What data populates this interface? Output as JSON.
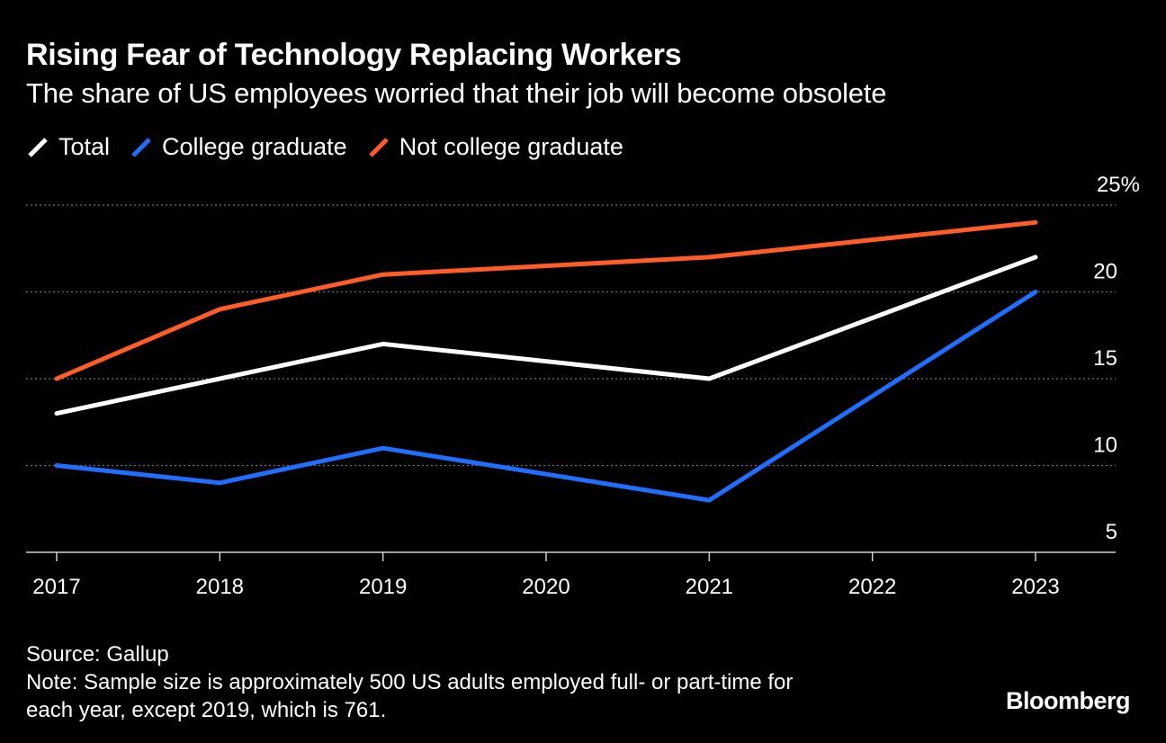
{
  "header": {
    "title": "Rising Fear of Technology Replacing Workers",
    "subtitle": "The share of US employees worried that their job will become obsolete"
  },
  "legend": [
    {
      "label": "Total",
      "color": "#ffffff"
    },
    {
      "label": "College graduate",
      "color": "#1f6fff"
    },
    {
      "label": "Not college graduate",
      "color": "#ff5c26"
    }
  ],
  "footer": {
    "source": "Source: Gallup",
    "note_line1": "Note: Sample size is approximately 500 US adults employed full- or part-time for",
    "note_line2": "each year, except 2019, which is 761."
  },
  "brand": "Bloomberg",
  "chart_data": {
    "type": "line",
    "title": "Rising Fear of Technology Replacing Workers",
    "subtitle": "The share of US employees worried that their job will become obsolete",
    "x": [
      2017,
      2018,
      2019,
      2020,
      2021,
      2022,
      2023
    ],
    "x_tick_labels": [
      "2017",
      "2018",
      "2019",
      "2020",
      "2021",
      "2022",
      "2023"
    ],
    "y_tick_labels": [
      "25%",
      "20",
      "15",
      "10",
      "5"
    ],
    "y_ticks": [
      25,
      20,
      15,
      10,
      5
    ],
    "ylim": [
      5,
      25
    ],
    "y_unit": "%",
    "grid": true,
    "legend_position": "top-left",
    "series": [
      {
        "name": "Total",
        "color": "#ffffff",
        "points": [
          [
            2017,
            13
          ],
          [
            2018,
            15
          ],
          [
            2019,
            17
          ],
          [
            2021,
            15
          ],
          [
            2023,
            22
          ]
        ]
      },
      {
        "name": "College graduate",
        "color": "#1f6fff",
        "points": [
          [
            2017,
            10
          ],
          [
            2018,
            9
          ],
          [
            2019,
            11
          ],
          [
            2021,
            8
          ],
          [
            2023,
            20
          ]
        ]
      },
      {
        "name": "Not college graduate",
        "color": "#ff5c26",
        "points": [
          [
            2017,
            15
          ],
          [
            2018,
            19
          ],
          [
            2019,
            21
          ],
          [
            2021,
            22
          ],
          [
            2023,
            24
          ]
        ]
      }
    ]
  }
}
